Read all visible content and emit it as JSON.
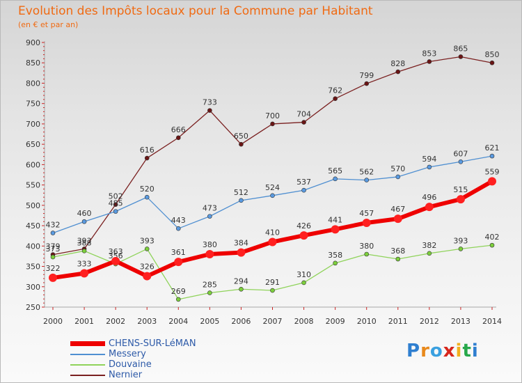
{
  "title": "Evolution des Impôts locaux pour la Commune par Habitant",
  "subtitle": "(en € et par an)",
  "logo": {
    "text": "Proxiti",
    "colors": [
      "#2f7fd0",
      "#e8891c",
      "#3aa0e0",
      "#d7261c",
      "#f2b01e",
      "#27a84a",
      "#2f7fd0"
    ]
  },
  "chart_data": {
    "type": "line",
    "x": [
      2000,
      2001,
      2002,
      2003,
      2004,
      2005,
      2006,
      2007,
      2008,
      2009,
      2010,
      2011,
      2012,
      2013,
      2014
    ],
    "ylim": [
      250,
      900
    ],
    "yticks": [
      250,
      300,
      350,
      400,
      450,
      500,
      550,
      600,
      650,
      700,
      750,
      800,
      850,
      900
    ],
    "grid": false,
    "legend_position": "bottom-left",
    "series": [
      {
        "name": "CHENS-SUR-LéMAN",
        "color": "#ee0000",
        "values": [
          322,
          333,
          363,
          326,
          361,
          380,
          384,
          410,
          426,
          441,
          457,
          467,
          496,
          515,
          559
        ]
      },
      {
        "name": "Messery",
        "color": "#4f8fd1",
        "values": [
          432,
          460,
          485,
          520,
          443,
          473,
          512,
          524,
          537,
          565,
          562,
          570,
          594,
          607,
          621
        ]
      },
      {
        "name": "Douvaine",
        "color": "#8fd35a",
        "values": [
          373,
          388,
          356,
          393,
          269,
          285,
          294,
          291,
          310,
          358,
          380,
          368,
          382,
          393,
          402
        ]
      },
      {
        "name": "Nernier",
        "color": "#7a2020",
        "values": [
          379,
          393,
          502,
          616,
          666,
          733,
          650,
          700,
          704,
          762,
          799,
          828,
          853,
          865,
          850
        ]
      }
    ]
  }
}
